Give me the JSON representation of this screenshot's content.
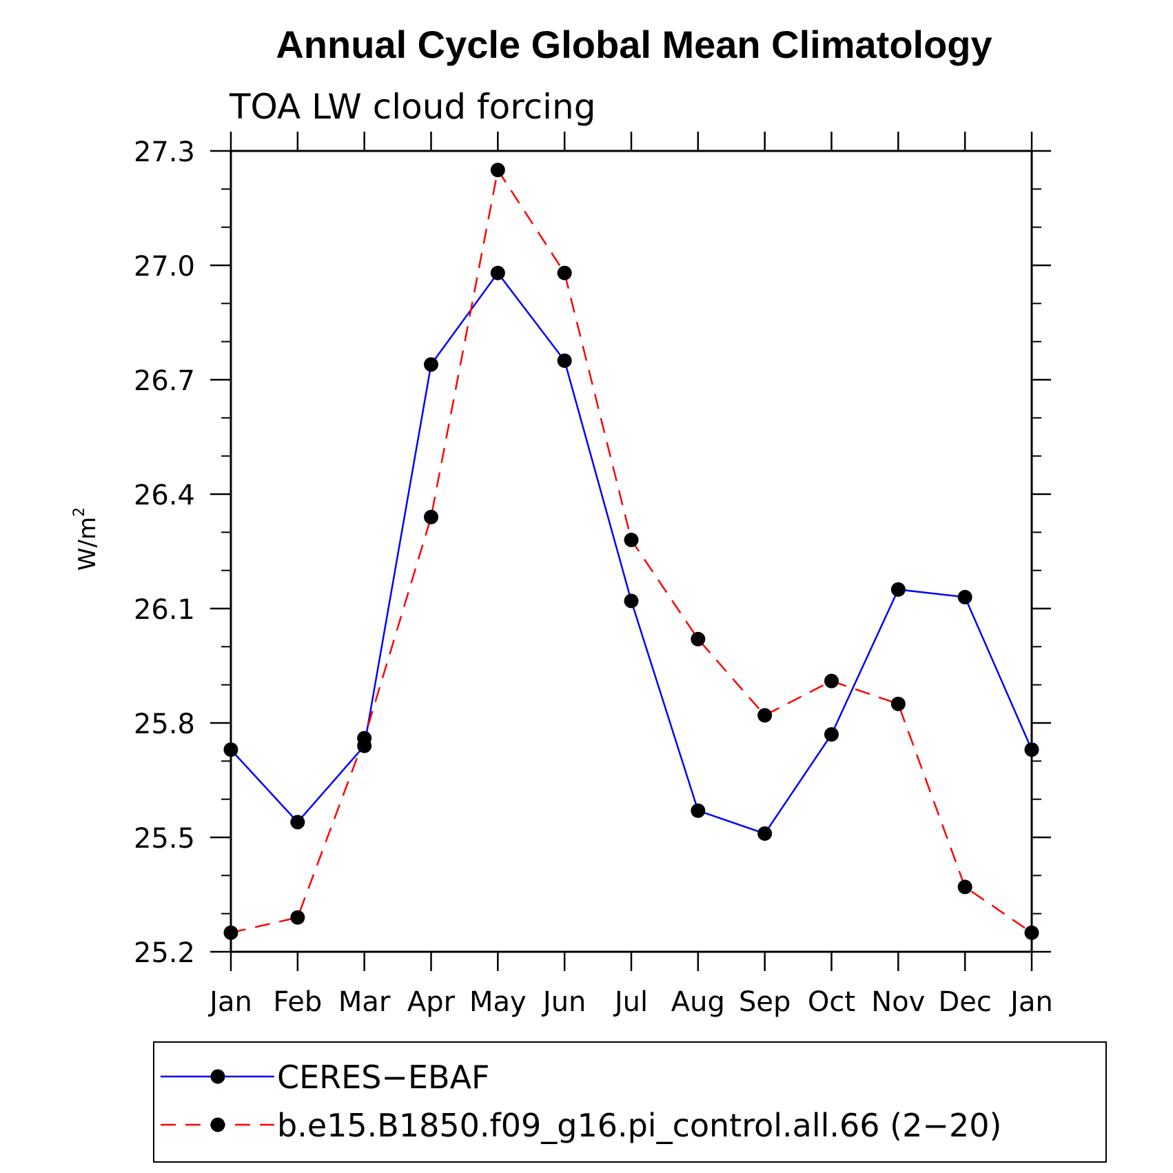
{
  "chart_data": {
    "type": "line",
    "title": "Annual Cycle Global Mean Climatology",
    "subtitle": "TOA LW cloud forcing",
    "ylabel_base": "W/m",
    "ylabel_exp": "2",
    "xlabel": "",
    "categories": [
      "Jan",
      "Feb",
      "Mar",
      "Apr",
      "May",
      "Jun",
      "Jul",
      "Aug",
      "Sep",
      "Oct",
      "Nov",
      "Dec",
      "Jan"
    ],
    "ylim": [
      25.2,
      27.3
    ],
    "yticks": [
      "25.2",
      "25.5",
      "25.8",
      "26.1",
      "26.4",
      "26.7",
      "27.0",
      "27.3"
    ],
    "grid": false,
    "legend_position": "bottom",
    "series": [
      {
        "name": "CERES−EBAF",
        "color": "#0000ff",
        "dash": "solid",
        "values": [
          25.73,
          25.54,
          25.74,
          26.74,
          26.98,
          26.75,
          26.12,
          25.57,
          25.51,
          25.77,
          26.15,
          26.13,
          25.73
        ]
      },
      {
        "name": "b.e15.B1850.f09_g16.pi_control.all.66 (2−20)",
        "color": "#ff0000",
        "dash": "dashed",
        "values": [
          25.25,
          25.29,
          25.76,
          26.34,
          27.25,
          26.98,
          26.28,
          26.02,
          25.82,
          25.91,
          25.85,
          25.37,
          25.25
        ]
      }
    ]
  }
}
